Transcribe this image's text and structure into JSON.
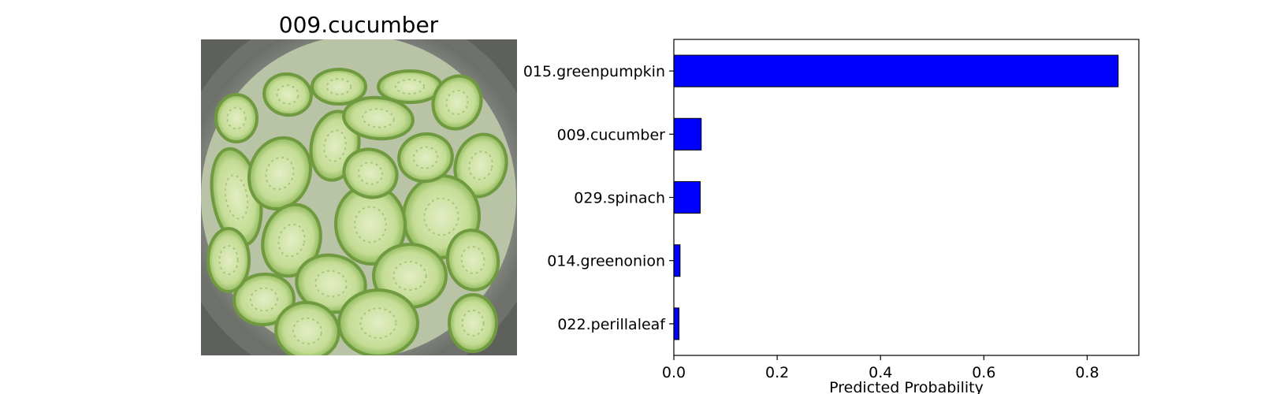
{
  "image_panel": {
    "title": "009.cucumber",
    "subject": "sliced cucumbers in a metal bowl"
  },
  "colors": {
    "bar": "#0000ff",
    "bar_edge": "#000000",
    "bowl": "#8f918c",
    "cucumber_skin": "#6f9a3f",
    "cucumber_flesh": "#cfe0a8"
  },
  "chart_data": {
    "type": "bar",
    "orientation": "horizontal",
    "categories": [
      "015.greenpumpkin",
      "009.cucumber",
      "029.spinach",
      "014.greenonion",
      "022.perillaleaf"
    ],
    "values": [
      0.86,
      0.053,
      0.051,
      0.012,
      0.01
    ],
    "xlabel": "Predicted Probability",
    "ylabel": "",
    "title": "",
    "xlim": [
      0,
      0.9
    ],
    "xticks": [
      0.0,
      0.2,
      0.4,
      0.6,
      0.8
    ],
    "xtick_labels": [
      "0.0",
      "0.2",
      "0.4",
      "0.6",
      "0.8"
    ],
    "grid": false,
    "legend": "none"
  }
}
